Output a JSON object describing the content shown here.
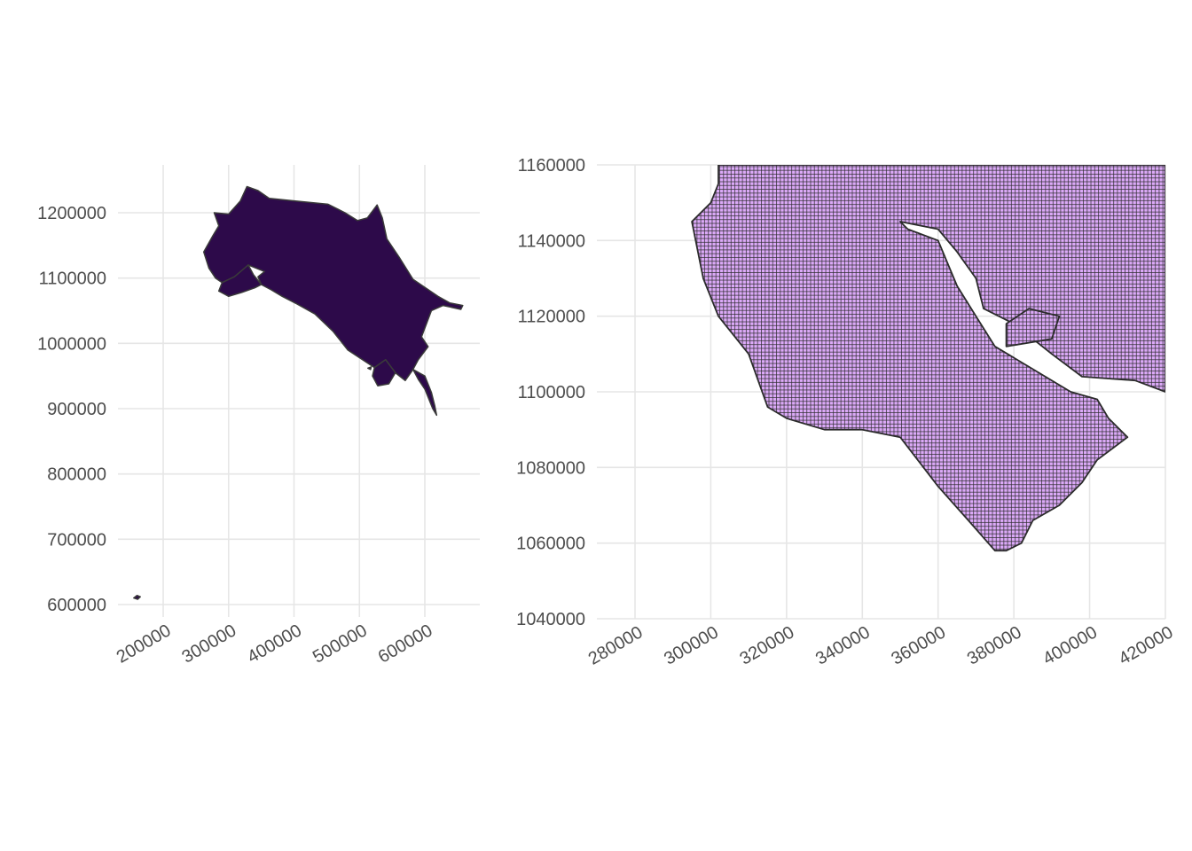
{
  "chart_data": [
    {
      "type": "map",
      "title": "",
      "xlabel": "",
      "ylabel": "",
      "xlim": [
        135000,
        680000
      ],
      "ylim": [
        585000,
        1270000
      ],
      "x_ticks": [
        200000,
        300000,
        400000,
        500000,
        600000
      ],
      "x_tick_labels": [
        "200000",
        "300000",
        "400000",
        "500000",
        "600000"
      ],
      "y_ticks": [
        600000,
        700000,
        800000,
        900000,
        1000000,
        1100000,
        1200000
      ],
      "y_tick_labels": [
        "600000",
        "700000",
        "800000",
        "900000",
        "1000000",
        "1100000",
        "1200000"
      ],
      "grid": true,
      "fill_color": "#2d0a4a",
      "border_color": "#3a3a3a",
      "shapes": [
        {
          "name": "mainland",
          "points": [
            [
              278000,
              1200000
            ],
            [
              300000,
              1198000
            ],
            [
              318000,
              1218000
            ],
            [
              328000,
              1240000
            ],
            [
              345000,
              1234000
            ],
            [
              362000,
              1222000
            ],
            [
              402000,
              1218000
            ],
            [
              452000,
              1213000
            ],
            [
              478000,
              1200000
            ],
            [
              497000,
              1188000
            ],
            [
              512000,
              1192000
            ],
            [
              527000,
              1212000
            ],
            [
              535000,
              1192000
            ],
            [
              542000,
              1160000
            ],
            [
              562000,
              1130000
            ],
            [
              582000,
              1098000
            ],
            [
              620000,
              1072000
            ],
            [
              638000,
              1062000
            ],
            [
              658000,
              1058000
            ],
            [
              655000,
              1052000
            ],
            [
              628000,
              1058000
            ],
            [
              610000,
              1050000
            ],
            [
              595000,
              1010000
            ],
            [
              605000,
              995000
            ],
            [
              590000,
              975000
            ],
            [
              582000,
              960000
            ],
            [
              570000,
              943000
            ],
            [
              555000,
              955000
            ],
            [
              540000,
              975000
            ],
            [
              523000,
              963000
            ],
            [
              500000,
              978000
            ],
            [
              482000,
              990000
            ],
            [
              460000,
              1018000
            ],
            [
              432000,
              1045000
            ],
            [
              405000,
              1060000
            ],
            [
              382000,
              1072000
            ],
            [
              365000,
              1082000
            ],
            [
              350000,
              1090000
            ],
            [
              345000,
              1102000
            ],
            [
              355000,
              1110000
            ],
            [
              330000,
              1120000
            ],
            [
              309000,
              1102000
            ],
            [
              290000,
              1093000
            ],
            [
              280000,
              1100000
            ],
            [
              270000,
              1115000
            ],
            [
              262000,
              1140000
            ],
            [
              276000,
              1165000
            ],
            [
              285000,
              1180000
            ]
          ]
        },
        {
          "name": "nicoya-peninsula",
          "points": [
            [
              290000,
              1093000
            ],
            [
              309000,
              1102000
            ],
            [
              330000,
              1120000
            ],
            [
              338000,
              1105000
            ],
            [
              350000,
              1090000
            ],
            [
              340000,
              1085000
            ],
            [
              320000,
              1078000
            ],
            [
              300000,
              1072000
            ],
            [
              285000,
              1080000
            ]
          ]
        },
        {
          "name": "osa-peninsula",
          "points": [
            [
              540000,
              975000
            ],
            [
              555000,
              955000
            ],
            [
              545000,
              938000
            ],
            [
              528000,
              935000
            ],
            [
              520000,
              950000
            ],
            [
              523000,
              963000
            ]
          ]
        },
        {
          "name": "burica-point",
          "points": [
            [
              582000,
              960000
            ],
            [
              600000,
              950000
            ],
            [
              610000,
              925000
            ],
            [
              615000,
              905000
            ],
            [
              618000,
              890000
            ],
            [
              612000,
              900000
            ],
            [
              600000,
              930000
            ],
            [
              590000,
              945000
            ]
          ]
        },
        {
          "name": "cocos-island",
          "points": [
            [
              155000,
              610000
            ],
            [
              160000,
              614000
            ],
            [
              165000,
              612000
            ],
            [
              161000,
              608000
            ]
          ]
        },
        {
          "name": "cano-island",
          "points": [
            [
              513000,
              962000
            ],
            [
              518000,
              964000
            ],
            [
              517000,
              960000
            ]
          ]
        }
      ]
    },
    {
      "type": "map",
      "title": "",
      "xlabel": "",
      "ylabel": "",
      "xlim": [
        270000,
        420000
      ],
      "ylim": [
        1040000,
        1160000
      ],
      "x_ticks": [
        280000,
        300000,
        320000,
        340000,
        360000,
        380000,
        400000,
        420000
      ],
      "x_tick_labels": [
        "280000",
        "300000",
        "320000",
        "340000",
        "360000",
        "380000",
        "400000",
        "420000"
      ],
      "y_ticks": [
        1040000,
        1060000,
        1080000,
        1100000,
        1120000,
        1140000,
        1160000
      ],
      "y_tick_labels": [
        "1040000",
        "1060000",
        "1080000",
        "1100000",
        "1120000",
        "1140000",
        "1160000"
      ],
      "grid": true,
      "cell_size": 1000,
      "cell_fill": "#dba9f7",
      "cell_border": "#2b2b2b",
      "shapes": [
        {
          "name": "raster-land",
          "points": [
            [
              302000,
              1160000
            ],
            [
              420000,
              1160000
            ],
            [
              420000,
              1100000
            ],
            [
              412000,
              1103000
            ],
            [
              398000,
              1104000
            ],
            [
              390000,
              1110000
            ],
            [
              380000,
              1118000
            ],
            [
              372000,
              1122000
            ],
            [
              370000,
              1130000
            ],
            [
              365000,
              1137000
            ],
            [
              360000,
              1143000
            ],
            [
              350000,
              1145000
            ],
            [
              352000,
              1143000
            ],
            [
              360000,
              1140000
            ],
            [
              365000,
              1128000
            ],
            [
              370000,
              1120000
            ],
            [
              375000,
              1112000
            ],
            [
              385000,
              1106000
            ],
            [
              395000,
              1100000
            ],
            [
              402000,
              1098000
            ],
            [
              405000,
              1093000
            ],
            [
              410000,
              1088000
            ],
            [
              402000,
              1082000
            ],
            [
              398000,
              1076000
            ],
            [
              392000,
              1070000
            ],
            [
              385000,
              1066000
            ],
            [
              382000,
              1060000
            ],
            [
              378000,
              1058000
            ],
            [
              375000,
              1058000
            ],
            [
              368000,
              1066000
            ],
            [
              360000,
              1075000
            ],
            [
              350000,
              1088000
            ],
            [
              340000,
              1090000
            ],
            [
              330000,
              1090000
            ],
            [
              320000,
              1093000
            ],
            [
              315000,
              1096000
            ],
            [
              310000,
              1110000
            ],
            [
              302000,
              1120000
            ],
            [
              298000,
              1130000
            ],
            [
              295000,
              1145000
            ],
            [
              300000,
              1150000
            ],
            [
              302000,
              1155000
            ]
          ]
        },
        {
          "name": "raster-island",
          "points": [
            [
              378000,
              1112000
            ],
            [
              390000,
              1114000
            ],
            [
              392000,
              1120000
            ],
            [
              384000,
              1122000
            ],
            [
              378000,
              1118000
            ]
          ]
        }
      ]
    }
  ]
}
